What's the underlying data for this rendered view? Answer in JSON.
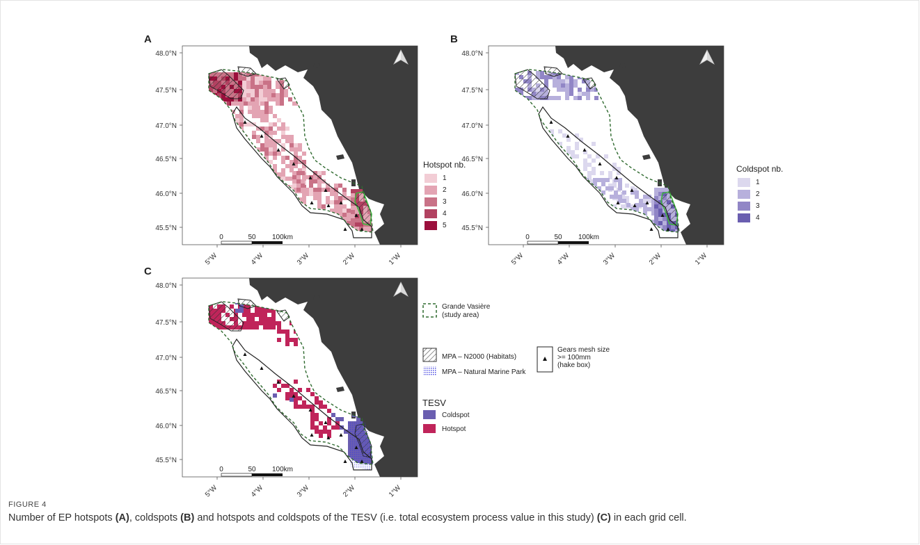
{
  "panels": {
    "a": {
      "label": "A",
      "legend_title": "Hotspot nb.",
      "classes": [
        "1",
        "2",
        "3",
        "4",
        "5"
      ],
      "colors": [
        "#f2cdd5",
        "#e3a4b3",
        "#c97287",
        "#b24261",
        "#9b0f3c"
      ]
    },
    "b": {
      "label": "B",
      "legend_title": "Coldspot nb.",
      "classes": [
        "1",
        "2",
        "3",
        "4"
      ],
      "colors": [
        "#dcd8ee",
        "#b7b0dc",
        "#9186c6",
        "#6a5eb0"
      ]
    },
    "c": {
      "label": "C"
    }
  },
  "axes": {
    "lat_ticks": [
      "48.0°N",
      "47.5°N",
      "47.0°N",
      "46.5°N",
      "46.0°N",
      "45.5°N"
    ],
    "lon_ticks": [
      "5°W",
      "4°W",
      "3°W",
      "2°W",
      "1°W"
    ],
    "scale": {
      "zero": "0",
      "mid": "50",
      "end": "100km"
    }
  },
  "legend_c": {
    "study_area": "Grande Vasière",
    "study_area_sub": "(study area)",
    "n2000": "MPA – N2000 (Habitats)",
    "marine_park": "MPA – Natural Marine Park",
    "gears_line1": "Gears mesh size",
    "gears_line2": ">= 100mm",
    "gears_line3": "(hake box)",
    "tesv_title": "TESV",
    "coldspot": "Coldspot",
    "hotspot": "Hotspot",
    "coldspot_color": "#6a5eb0",
    "hotspot_color": "#c0245a"
  },
  "caption": {
    "fig": "FIGURE 4",
    "t1": "Number of EP hotspots ",
    "a": "(A)",
    "t2": ", coldspots ",
    "b": "(B)",
    "t3": " and hotspots and coldspots of the TESV (i.e. total ecosystem process value in this study) ",
    "c": "(C)",
    "t4": " in each grid cell."
  }
}
